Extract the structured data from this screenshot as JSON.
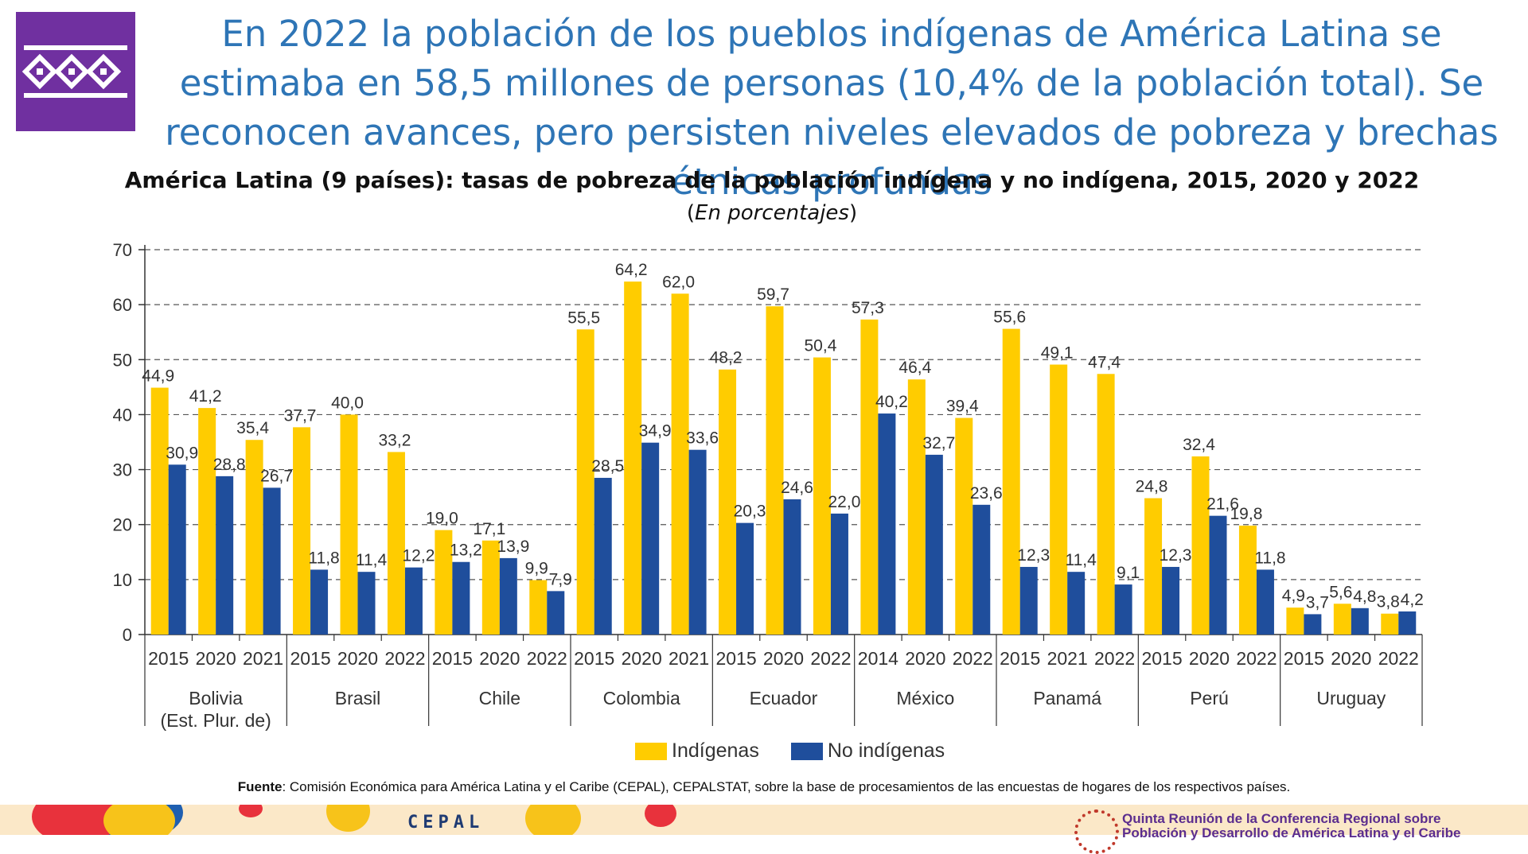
{
  "headline": "En 2022 la población de los pueblos indígenas de América Latina se estimaba en 58,5 millones de personas (10,4% de la población total). Se reconocen avances, pero persisten niveles elevados de pobreza y brechas étnicas profundas",
  "footer": {
    "source_label": "Fuente",
    "source_text": ": Comisión Económica para América Latina y el Caribe (CEPAL), CEPALSTAT, sobre la base de procesamientos de las encuestas de hogares de los respectivos países.",
    "cepal_logo": "CEPAL",
    "conference_line1": "Quinta Reunión de la Conferencia Regional sobre",
    "conference_line2": "Población y Desarrollo de América Latina y el Caribe"
  },
  "colors": {
    "indigenous": "#ffcc00",
    "non_indigenous": "#1f4e9c",
    "headline": "#2e75b6",
    "logo_background": "#7030a0"
  },
  "chart_data": {
    "type": "bar",
    "title": "América Latina (9 países): tasas de pobreza de la población indígena y no indígena, 2015, 2020 y 2022",
    "subtitle_open": "(",
    "subtitle_italic": "En porcentajes",
    "subtitle_close": ")",
    "ylim": [
      0,
      70
    ],
    "yticks": [
      0,
      10,
      20,
      30,
      40,
      50,
      60,
      70
    ],
    "grid": true,
    "legend_placement": "bottom",
    "series_names": [
      "Indígenas",
      "No indígenas"
    ],
    "groups": [
      {
        "country": "Bolivia",
        "country_line2": "(Est. Plur. de)",
        "years": [
          "2015",
          "2020",
          "2021"
        ],
        "indigenous": [
          44.9,
          41.2,
          35.4
        ],
        "non_indigenous": [
          30.9,
          28.8,
          26.7
        ]
      },
      {
        "country": "Brasil",
        "years": [
          "2015",
          "2020",
          "2022"
        ],
        "indigenous": [
          37.7,
          40.0,
          33.2
        ],
        "non_indigenous": [
          11.8,
          11.4,
          12.2
        ]
      },
      {
        "country": "Chile",
        "years": [
          "2015",
          "2020",
          "2022"
        ],
        "indigenous": [
          19.0,
          17.1,
          9.9
        ],
        "non_indigenous": [
          13.2,
          13.9,
          7.9
        ]
      },
      {
        "country": "Colombia",
        "years": [
          "2015",
          "2020",
          "2021"
        ],
        "indigenous": [
          55.5,
          64.2,
          62.0
        ],
        "non_indigenous": [
          28.5,
          34.9,
          33.6
        ]
      },
      {
        "country": "Ecuador",
        "years": [
          "2015",
          "2020",
          "2022"
        ],
        "indigenous": [
          48.2,
          59.7,
          50.4
        ],
        "non_indigenous": [
          20.3,
          24.6,
          22.0
        ]
      },
      {
        "country": "México",
        "years": [
          "2014",
          "2020",
          "2022"
        ],
        "indigenous": [
          57.3,
          46.4,
          39.4
        ],
        "non_indigenous": [
          40.2,
          32.7,
          23.6
        ]
      },
      {
        "country": "Panamá",
        "years": [
          "2015",
          "2021",
          "2022"
        ],
        "indigenous": [
          55.6,
          49.1,
          47.4
        ],
        "non_indigenous": [
          12.3,
          11.4,
          9.1
        ]
      },
      {
        "country": "Perú",
        "years": [
          "2015",
          "2020",
          "2022"
        ],
        "indigenous": [
          24.8,
          32.4,
          19.8
        ],
        "non_indigenous": [
          12.3,
          21.6,
          11.8
        ]
      },
      {
        "country": "Uruguay",
        "years": [
          "2015",
          "2020",
          "2022"
        ],
        "indigenous": [
          4.9,
          5.6,
          3.8
        ],
        "non_indigenous": [
          3.7,
          4.8,
          4.2
        ]
      }
    ]
  }
}
